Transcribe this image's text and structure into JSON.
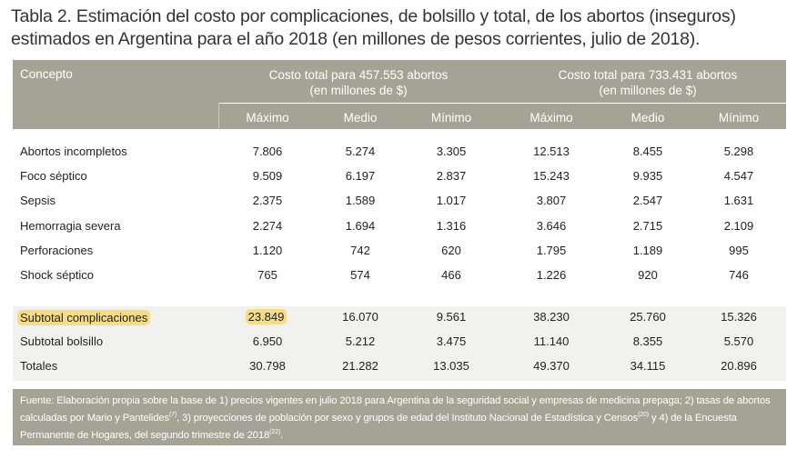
{
  "title": "Tabla 2. Estimación del costo por complicaciones, de bolsillo y total, de los abortos (inseguros) estimados en Argentina para el año 2018 (en millones de pesos corrientes, julio de 2018).",
  "header": {
    "concept": "Concepto",
    "group1": {
      "line1": "Costo total para 457.553 abortos",
      "line2": "(en millones de $)"
    },
    "group2": {
      "line1": "Costo total para 733.431 abortos",
      "line2": "(en millones de $)"
    },
    "subcols": [
      "Máximo",
      "Medio",
      "Mínimo",
      "Máximo",
      "Medio",
      "Mínimo"
    ]
  },
  "rows": [
    {
      "label": "Abortos incompletos",
      "values": [
        "7.806",
        "5.274",
        "3.305",
        "12.513",
        "8.455",
        "5.298"
      ]
    },
    {
      "label": "Foco séptico",
      "values": [
        "9.509",
        "6.197",
        "2.837",
        "15.243",
        "9.935",
        "4.547"
      ]
    },
    {
      "label": "Sepsis",
      "values": [
        "2.375",
        "1.589",
        "1.017",
        "3.807",
        "2.547",
        "1.631"
      ]
    },
    {
      "label": "Hemorragia severa",
      "values": [
        "2.274",
        "1.694",
        "1.316",
        "3.646",
        "2.715",
        "2.109"
      ]
    },
    {
      "label": "Perforaciones",
      "values": [
        "1.120",
        "742",
        "620",
        "1.795",
        "1.189",
        "995"
      ]
    },
    {
      "label": "Shock séptico",
      "values": [
        "765",
        "574",
        "466",
        "1.226",
        "920",
        "746"
      ]
    }
  ],
  "summary_rows": [
    {
      "label": "Subtotal complicaciones",
      "values": [
        "23.849",
        "16.070",
        "9.561",
        "38.230",
        "25.760",
        "15.326"
      ],
      "highlighted": true
    },
    {
      "label": "Subtotal bolsillo",
      "values": [
        "6.950",
        "5.212",
        "3.475",
        "11.140",
        "8.355",
        "5.570"
      ]
    },
    {
      "label": "Totales",
      "values": [
        "30.798",
        "21.282",
        "13.035",
        "49.370",
        "34.115",
        "20.896"
      ]
    }
  ],
  "footnote": {
    "p1": "Fuente: Elaboración propia sobre la base de 1) precios vigentes en julio 2018 para Argentina de la seguridad social y empresas de medicina prepaga; 2) tasas de abortos calculadas por Mario y Pantelides",
    "ref1": "(7)",
    "p2": ", 3) proyecciones de población por sexo y grupos de edad del Instituto Nacional de Estadística y Censos",
    "ref2": "(20)",
    "p3": " y 4) de la Encuesta Permanente de Hogares, del segundo trimestre de 2018",
    "ref3": "(22)",
    "p4": "."
  },
  "colors": {
    "header_bg": "#a4a395",
    "highlight": "#f6dc85",
    "summary_bg": "#f1f1ef"
  }
}
